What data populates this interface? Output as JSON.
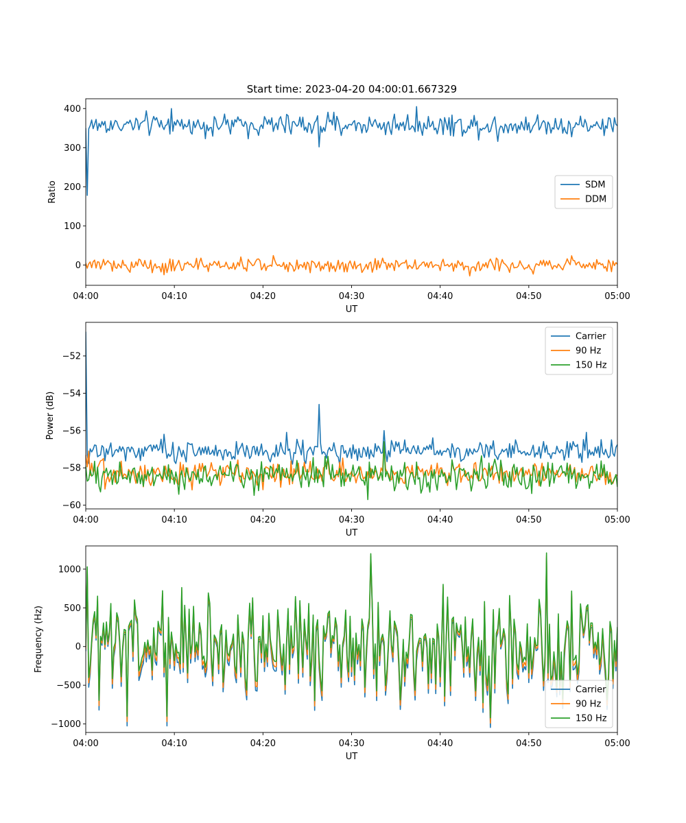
{
  "title": "Start time: 2023-04-20 04:00:01.667329",
  "chart_data": [
    {
      "type": "line",
      "xlabel": "UT",
      "ylabel": "Ratio",
      "xlim": [
        "04:00",
        "05:00"
      ],
      "xticks": [
        "04:00",
        "04:10",
        "04:20",
        "04:30",
        "04:40",
        "04:50",
        "05:00"
      ],
      "ylim": [
        -52,
        425
      ],
      "yticks": [
        0,
        100,
        200,
        300,
        400
      ],
      "legend": "center-right",
      "series": [
        {
          "name": "SDM",
          "color": "#1f77b4",
          "start": 350,
          "dip": 178,
          "mean": 358,
          "noise": 14,
          "spikes": [
            [
              37.3,
              405
            ],
            [
              26.3,
              302
            ],
            [
              9.6,
              400
            ],
            [
              46.5,
              316
            ]
          ]
        },
        {
          "name": "DDM",
          "color": "#ff7f0e",
          "start": 5,
          "mean": 0,
          "noise": 9,
          "spikes": [
            [
              21.1,
              24
            ],
            [
              8.9,
              -25
            ],
            [
              43.4,
              -28
            ]
          ]
        }
      ]
    },
    {
      "type": "line",
      "xlabel": "UT",
      "ylabel": "Power (dB)",
      "xlim": [
        "04:00",
        "05:00"
      ],
      "xticks": [
        "04:00",
        "04:10",
        "04:20",
        "04:30",
        "04:40",
        "04:50",
        "05:00"
      ],
      "ylim": [
        -60.2,
        -50.2
      ],
      "yticks": [
        -60,
        -58,
        -56,
        -54,
        -52
      ],
      "legend": "top-right",
      "series": [
        {
          "name": "Carrier",
          "color": "#1f77b4",
          "start": -50.7,
          "mean": -57.1,
          "noise": 0.3,
          "spikes": [
            [
              26.3,
              -54.6
            ],
            [
              33.7,
              -56.0
            ],
            [
              22.7,
              -56.1
            ],
            [
              8.9,
              -56.2
            ],
            [
              56.5,
              -56.1
            ]
          ]
        },
        {
          "name": "90 Hz",
          "color": "#ff7f0e",
          "start": -57.3,
          "mean": -58.3,
          "noise": 0.35,
          "spikes": [
            [
              33.6,
              -56.6
            ],
            [
              0.3,
              -57.1
            ]
          ]
        },
        {
          "name": "150 Hz",
          "color": "#2ca02c",
          "start": -57.9,
          "mean": -58.4,
          "noise": 0.4,
          "spikes": [
            [
              33.7,
              -56.6
            ],
            [
              31.8,
              -59.7
            ]
          ]
        }
      ]
    },
    {
      "type": "line",
      "xlabel": "UT",
      "ylabel": "Frequency (Hz)",
      "xlim": [
        "04:00",
        "05:00"
      ],
      "xticks": [
        "04:00",
        "04:10",
        "04:20",
        "04:30",
        "04:40",
        "04:50",
        "05:00"
      ],
      "ylim": [
        -1110,
        1300
      ],
      "yticks": [
        -1000,
        -500,
        0,
        500,
        1000
      ],
      "legend": "bottom-right",
      "series": [
        {
          "name": "Carrier",
          "color": "#1f77b4",
          "offset": -100
        },
        {
          "name": "90 Hz",
          "color": "#ff7f0e",
          "offset": -55
        },
        {
          "name": "150 Hz",
          "color": "#2ca02c",
          "offset": 0,
          "amplitude": 420,
          "spikes": [
            [
              32.2,
              1200
            ],
            [
              52.0,
              1210
            ],
            [
              45.6,
              -920
            ],
            [
              9.2,
              -900
            ],
            [
              4.6,
              -900
            ]
          ]
        }
      ]
    }
  ]
}
